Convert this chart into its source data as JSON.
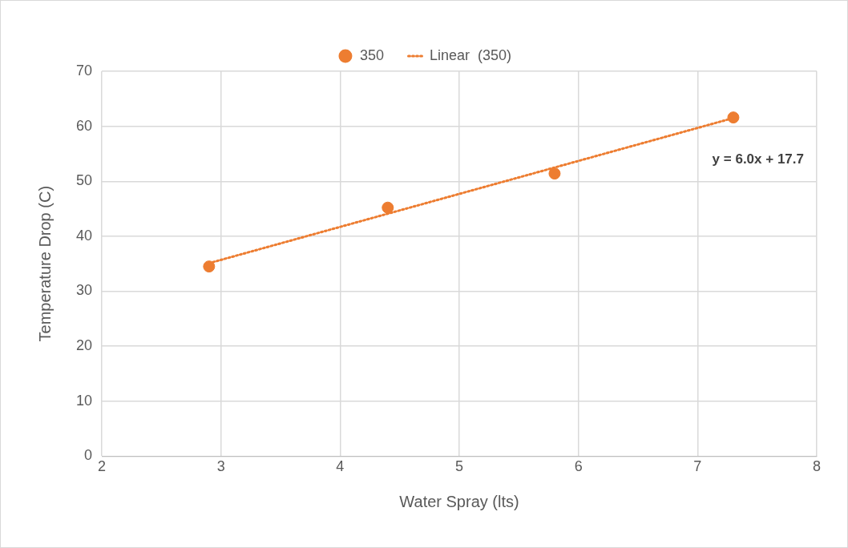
{
  "chart_data": {
    "type": "scatter",
    "xlabel": "Water Spray (lts)",
    "ylabel": "Temperature Drop (C)",
    "series": [
      {
        "name": "350",
        "color": "#ed7d31",
        "x": [
          2.9,
          4.4,
          5.8,
          7.3
        ],
        "values": [
          34.5,
          45.2,
          51.4,
          61.6
        ],
        "marker": "circle"
      },
      {
        "name": "Linear  (350)",
        "type": "line",
        "color": "#ed7d31",
        "x": [
          2.9,
          7.3
        ],
        "values": [
          35.1,
          61.5
        ],
        "line_style": "dotted",
        "marker": "none"
      }
    ],
    "xlim": [
      2,
      8
    ],
    "xticks": [
      2,
      3,
      4,
      5,
      6,
      7,
      8
    ],
    "ylim": [
      0,
      70
    ],
    "yticks": [
      0,
      10,
      20,
      30,
      40,
      50,
      60,
      70
    ],
    "grid": true,
    "legend": "top",
    "annotations": [
      "y = 6.0x + 17.7"
    ]
  }
}
